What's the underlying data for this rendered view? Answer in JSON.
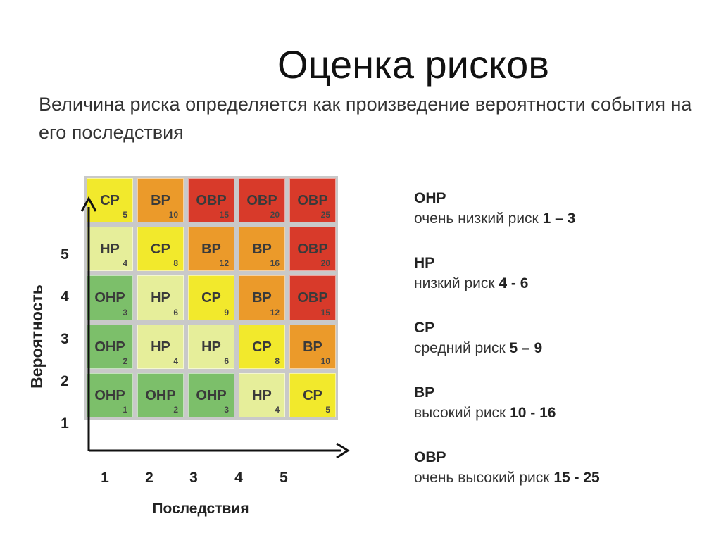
{
  "title": "Оценка рисков",
  "subtitle": "Величина риска определяется как произведение вероятности события на его последствия",
  "axes": {
    "y_label": "Вероятность",
    "x_label": "Последствия",
    "y_ticks": [
      "1",
      "2",
      "3",
      "4",
      "5"
    ],
    "x_ticks": [
      "1",
      "2",
      "3",
      "4",
      "5"
    ]
  },
  "colors": {
    "ОНР": "#7cbf6a",
    "НР": "#e6ee9a",
    "СР": "#f2e92c",
    "ВР": "#eb9a2a",
    "ОВР": "#d83a2a",
    "axis": "#111111"
  },
  "matrix": [
    [
      {
        "code": "СР",
        "score": "5"
      },
      {
        "code": "ВР",
        "score": "10"
      },
      {
        "code": "ОВР",
        "score": "15"
      },
      {
        "code": "ОВР",
        "score": "20"
      },
      {
        "code": "ОВР",
        "score": "25"
      }
    ],
    [
      {
        "code": "НР",
        "score": "4"
      },
      {
        "code": "СР",
        "score": "8"
      },
      {
        "code": "ВР",
        "score": "12"
      },
      {
        "code": "ВР",
        "score": "16"
      },
      {
        "code": "ОВР",
        "score": "20"
      }
    ],
    [
      {
        "code": "ОНР",
        "score": "3"
      },
      {
        "code": "НР",
        "score": "6"
      },
      {
        "code": "СР",
        "score": "9"
      },
      {
        "code": "ВР",
        "score": "12"
      },
      {
        "code": "ОВР",
        "score": "15"
      }
    ],
    [
      {
        "code": "ОНР",
        "score": "2"
      },
      {
        "code": "НР",
        "score": "4"
      },
      {
        "code": "НР",
        "score": "6"
      },
      {
        "code": "СР",
        "score": "8"
      },
      {
        "code": "ВР",
        "score": "10"
      }
    ],
    [
      {
        "code": "ОНР",
        "score": "1"
      },
      {
        "code": "ОНР",
        "score": "2"
      },
      {
        "code": "ОНР",
        "score": "3"
      },
      {
        "code": "НР",
        "score": "4"
      },
      {
        "code": "СР",
        "score": "5"
      }
    ]
  ],
  "legend": [
    {
      "code": "ОНР",
      "desc": "очень низкий риск",
      "range": "1 – 3"
    },
    {
      "code": "НР",
      "desc": "низкий риск",
      "range": "4 - 6"
    },
    {
      "code": "СР",
      "desc": "средний риск",
      "range": "5 – 9"
    },
    {
      "code": "ВР",
      "desc": "высокий риск",
      "range": "10 - 16"
    },
    {
      "code": "ОВР",
      "desc": "очень высокий риск",
      "range": "15 - 25"
    }
  ]
}
